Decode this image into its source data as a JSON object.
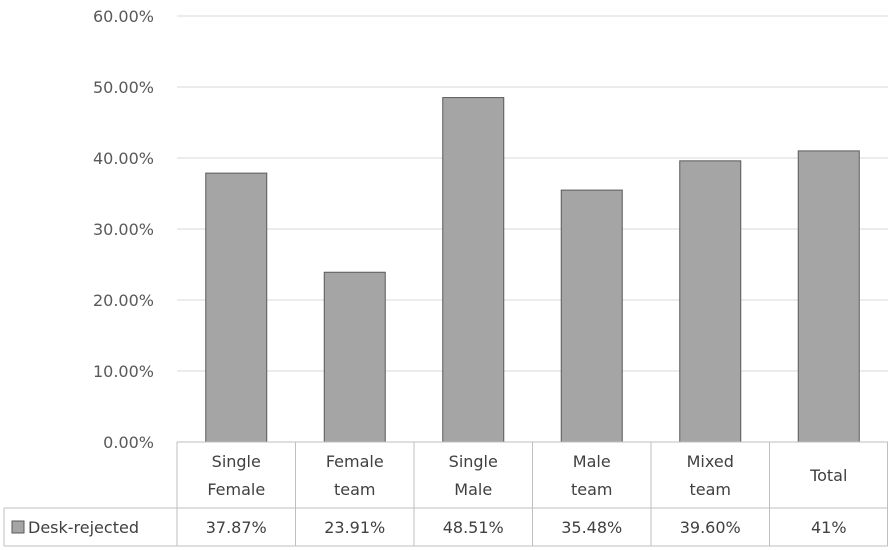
{
  "chart_data": {
    "type": "bar",
    "categories": [
      [
        "Single",
        "Female"
      ],
      [
        "Female",
        "team"
      ],
      [
        "Single",
        "Male"
      ],
      [
        "Male",
        "team"
      ],
      [
        "Mixed",
        "team"
      ],
      [
        "Total"
      ]
    ],
    "series": [
      {
        "name": "Desk-rejected",
        "values": [
          37.87,
          23.91,
          48.51,
          35.48,
          39.6,
          41
        ],
        "value_labels": [
          "37.87%",
          "23.91%",
          "48.51%",
          "35.48%",
          "39.60%",
          "41%"
        ]
      }
    ],
    "ylim": [
      0,
      60
    ],
    "yticks": [
      0,
      10,
      20,
      30,
      40,
      50,
      60
    ],
    "ytick_labels": [
      "0.00%",
      "10.00%",
      "20.00%",
      "30.00%",
      "40.00%",
      "50.00%",
      "60.00%"
    ],
    "grid": true,
    "data_table": true,
    "colors": {
      "bar_fill": "#a5a5a5",
      "bar_stroke": "#595959",
      "gridline": "#d9d9d9",
      "axis": "#bfbfbf"
    }
  }
}
